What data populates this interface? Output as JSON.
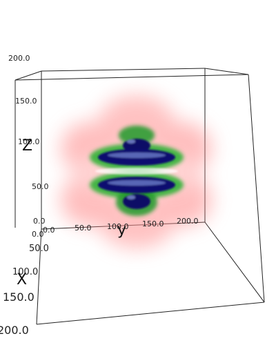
{
  "axes": {
    "x": {
      "title": "X",
      "ticks": [
        "0.0",
        "50.0",
        "100.0",
        "150.0",
        "200.0"
      ]
    },
    "y": {
      "title": "y",
      "ticks": [
        "0.0",
        "50.0",
        "100.0",
        "150.0",
        "200.0"
      ]
    },
    "z": {
      "title": "Z",
      "ticks": [
        "0.0",
        "50.0",
        "100.0",
        "150.0",
        "200.0"
      ]
    }
  },
  "colors": {
    "outer_shell": "#ff8080",
    "middle_shell": "#22aa22",
    "inner_core": "#101070",
    "highlight": "#6a7cc8"
  }
}
